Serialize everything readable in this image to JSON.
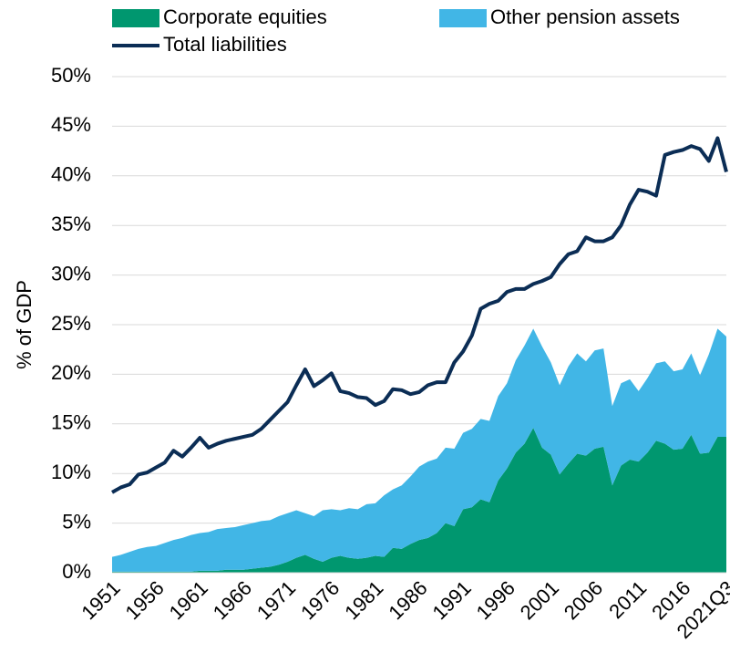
{
  "chart_data": {
    "type": "stacked_area_line",
    "ylabel": "% of GDP",
    "categories": [
      "1951",
      null,
      null,
      null,
      null,
      "1956",
      null,
      null,
      null,
      null,
      "1961",
      null,
      null,
      null,
      null,
      "1966",
      null,
      null,
      null,
      null,
      "1971",
      null,
      null,
      null,
      null,
      "1976",
      null,
      null,
      null,
      null,
      "1981",
      null,
      null,
      null,
      null,
      "1986",
      null,
      null,
      null,
      null,
      "1991",
      null,
      null,
      null,
      null,
      "1996",
      null,
      null,
      null,
      null,
      "2001",
      null,
      null,
      null,
      null,
      "2006",
      null,
      null,
      null,
      null,
      "2011",
      null,
      null,
      null,
      null,
      "2016",
      null,
      null,
      null,
      null,
      "2021Q3"
    ],
    "series": [
      {
        "name": "Corporate equities",
        "color": "#00976f",
        "kind": "area",
        "values": [
          0.1,
          0.1,
          0.1,
          0.1,
          0.1,
          0.1,
          0.1,
          0.1,
          0.1,
          0.1,
          0.2,
          0.2,
          0.2,
          0.3,
          0.3,
          0.3,
          0.4,
          0.5,
          0.6,
          0.8,
          1.1,
          1.5,
          1.8,
          1.4,
          1.1,
          1.5,
          1.7,
          1.5,
          1.4,
          1.5,
          1.7,
          1.6,
          2.5,
          2.4,
          2.9,
          3.3,
          3.5,
          4.0,
          5.0,
          4.7,
          6.4,
          6.6,
          7.4,
          7.1,
          9.3,
          10.5,
          12.1,
          13.0,
          14.6,
          12.6,
          11.9,
          9.9,
          11.0,
          12.0,
          11.8,
          12.5,
          12.7,
          8.8,
          10.8,
          11.4,
          11.2,
          12.1,
          13.3,
          13.0,
          12.4,
          12.5,
          13.9,
          12.0,
          12.1,
          13.7,
          13.7
        ]
      },
      {
        "name": "Other pension assets",
        "color": "#41b6e6",
        "kind": "area",
        "values": [
          1.5,
          1.7,
          2.0,
          2.3,
          2.5,
          2.6,
          2.9,
          3.2,
          3.4,
          3.7,
          3.8,
          3.9,
          4.2,
          4.2,
          4.3,
          4.5,
          4.6,
          4.7,
          4.7,
          4.9,
          4.9,
          4.8,
          4.2,
          4.3,
          5.2,
          4.9,
          4.6,
          5.0,
          5.0,
          5.4,
          5.3,
          6.2,
          5.9,
          6.4,
          6.8,
          7.4,
          7.7,
          7.5,
          7.6,
          7.8,
          7.7,
          7.9,
          8.1,
          8.2,
          8.5,
          8.6,
          9.3,
          9.9,
          10.0,
          10.2,
          9.3,
          9.0,
          9.8,
          10.1,
          9.5,
          9.9,
          9.9,
          8.0,
          8.3,
          8.1,
          7.1,
          7.5,
          7.8,
          8.3,
          7.9,
          8.0,
          8.2,
          7.9,
          9.9,
          10.9,
          10.1
        ]
      },
      {
        "name": "Total liabilities",
        "color": "#0b2d55",
        "kind": "line",
        "values": [
          8.1,
          8.6,
          8.9,
          9.9,
          10.1,
          10.6,
          11.1,
          12.3,
          11.7,
          12.6,
          13.6,
          12.6,
          13.0,
          13.3,
          13.5,
          13.7,
          13.9,
          14.5,
          15.4,
          16.3,
          17.2,
          18.9,
          20.5,
          18.8,
          19.4,
          20.1,
          18.3,
          18.1,
          17.7,
          17.6,
          16.9,
          17.3,
          18.5,
          18.4,
          18.0,
          18.2,
          18.9,
          19.2,
          19.2,
          21.2,
          22.3,
          23.9,
          26.6,
          27.1,
          27.4,
          28.3,
          28.6,
          28.6,
          29.1,
          29.4,
          29.8,
          31.1,
          32.1,
          32.4,
          33.8,
          33.4,
          33.4,
          33.8,
          35.0,
          37.1,
          38.6,
          38.4,
          38.0,
          42.1,
          42.4,
          42.6,
          43.0,
          42.7,
          41.5,
          43.8,
          40.4
        ]
      }
    ],
    "ylim": [
      0,
      50
    ],
    "yticks": [
      {
        "value": 0,
        "label": "0%"
      },
      {
        "value": 5,
        "label": "5%"
      },
      {
        "value": 10,
        "label": "10%"
      },
      {
        "value": 15,
        "label": "15%"
      },
      {
        "value": 20,
        "label": "20%"
      },
      {
        "value": 25,
        "label": "25%"
      },
      {
        "value": 30,
        "label": "30%"
      },
      {
        "value": 35,
        "label": "35%"
      },
      {
        "value": 40,
        "label": "40%"
      },
      {
        "value": 45,
        "label": "45%"
      },
      {
        "value": 50,
        "label": "50%"
      }
    ],
    "grid": true
  }
}
